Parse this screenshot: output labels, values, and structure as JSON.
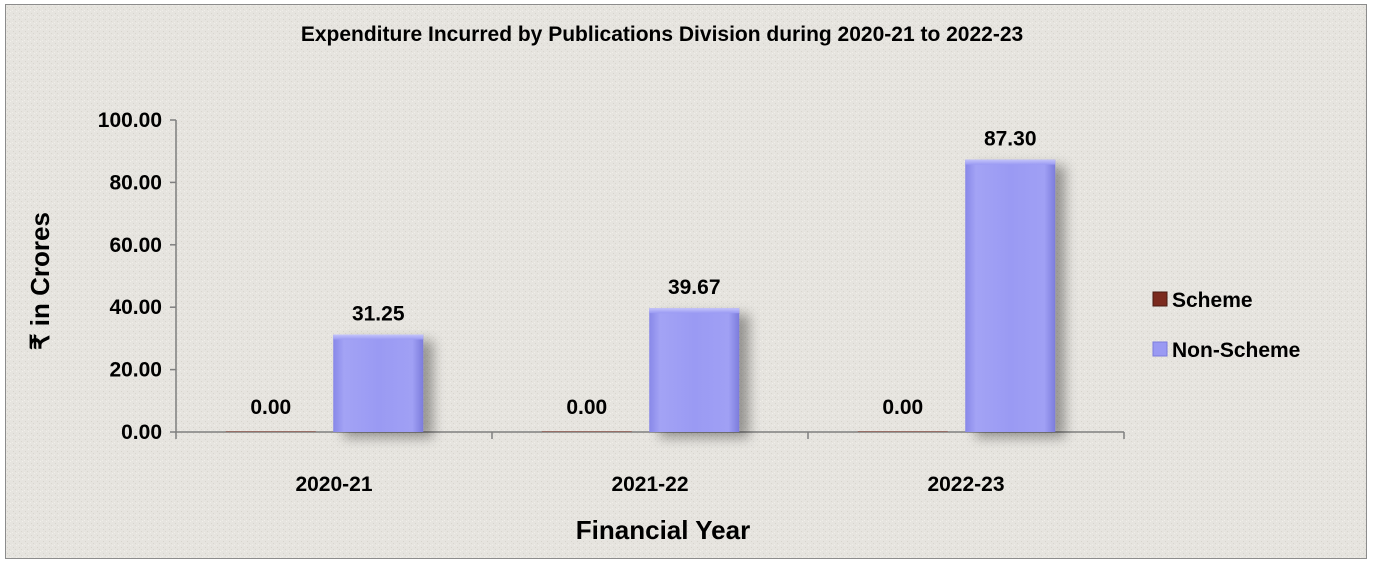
{
  "chart_data": {
    "type": "bar",
    "title": "Expenditure Incurred by Publications Division during 2020-21 to 2022-23",
    "xlabel": "Financial Year",
    "ylabel": "₹ in Crores",
    "categories": [
      "2020-21",
      "2021-22",
      "2022-23"
    ],
    "series": [
      {
        "name": "Scheme",
        "values": [
          0.0,
          0.0,
          0.0
        ],
        "color": "#7b2a1e"
      },
      {
        "name": "Non-Scheme",
        "values": [
          31.25,
          39.67,
          87.3
        ],
        "color": "#9999f2"
      }
    ],
    "ylim": [
      0,
      100
    ],
    "yticks": [
      "0.00",
      "20.00",
      "40.00",
      "60.00",
      "80.00",
      "100.00"
    ],
    "data_labels": [
      [
        "0.00",
        "0.00",
        "0.00"
      ],
      [
        "31.25",
        "39.67",
        "87.30"
      ]
    ],
    "legend_position": "right",
    "grid": false
  }
}
